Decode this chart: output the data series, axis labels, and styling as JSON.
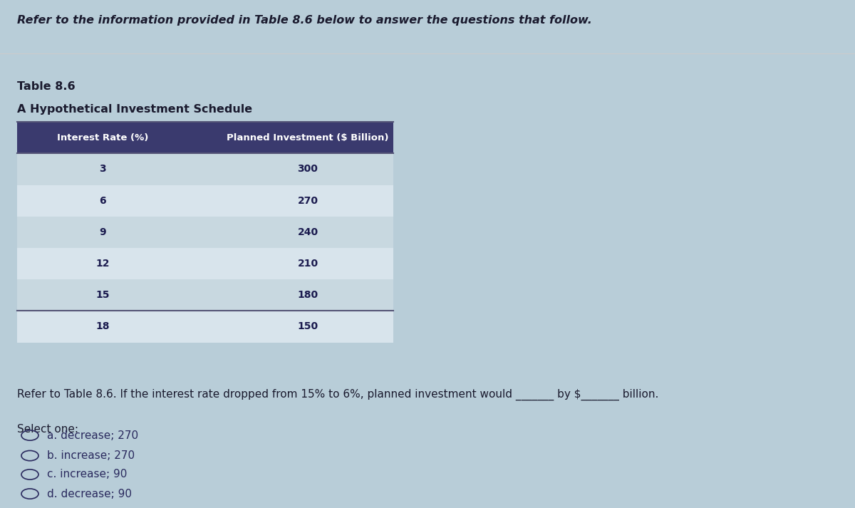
{
  "background_color": "#b8cdd8",
  "header_text": "Refer to the information provided in Table 8.6 below to answer the questions that follow.",
  "table_label": "Table 8.6",
  "table_subtitle": "A Hypothetical Investment Schedule",
  "col1_header": "Interest Rate (%)",
  "col2_header": "Planned Investment ($ Billion)",
  "interest_rates": [
    3,
    6,
    9,
    12,
    15,
    18
  ],
  "planned_investment": [
    300,
    270,
    240,
    210,
    180,
    150
  ],
  "question_text": "Refer to Table 8.6. If the interest rate dropped from 15% to 6%, planned investment would _______ by $_______ billion.",
  "select_one_label": "Select one:",
  "options": [
    "a. decrease; 270",
    "b. increase; 270",
    "c. increase; 90",
    "d. decrease; 90"
  ],
  "table_header_bg": "#3a3a6e",
  "table_header_color": "#ffffff",
  "table_row_bg_odd": "#c8d8e0",
  "table_row_bg_even": "#d8e4ec",
  "table_text_color": "#1a1a4e",
  "header_text_color": "#1a1a2e",
  "option_text_color": "#2a2a5e",
  "separator_color": "#cccccc"
}
